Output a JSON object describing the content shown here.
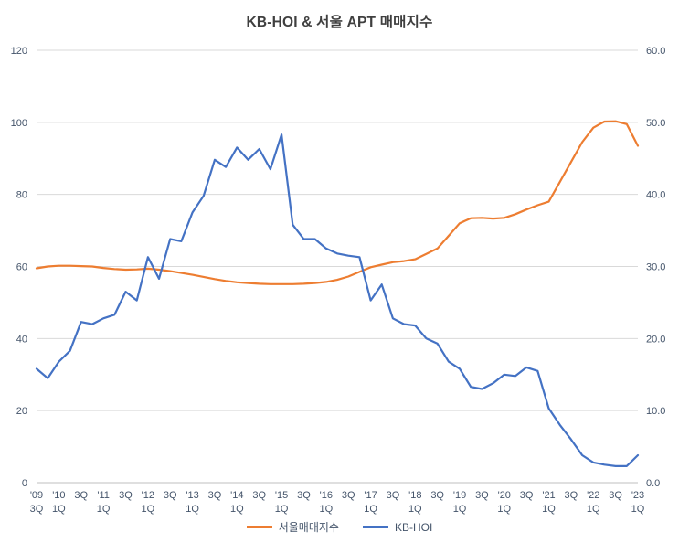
{
  "title": "KB-HOI & 서울 APT 매매지수",
  "legend": {
    "items": [
      "서울매매지수",
      "KB-HOI"
    ]
  },
  "chart_data": {
    "type": "line",
    "title": "KB-HOI & 서울 APT 매매지수",
    "legend_position": "bottom",
    "grid": "horizontal",
    "style": {
      "grid_line": "#d9d9d9",
      "axis_line": "#bfbfbf",
      "axis_text": "#44546a",
      "title_text": "#3f3f3f",
      "background": "#ffffff"
    },
    "left_axis": {
      "min": 0,
      "max": 120,
      "step": 20,
      "ticks": [
        "0",
        "20",
        "40",
        "60",
        "80",
        "100",
        "120"
      ]
    },
    "right_axis": {
      "min": 0,
      "max": 60,
      "step": 10,
      "ticks": [
        "0.0",
        "10.0",
        "20.0",
        "30.0",
        "40.0",
        "50.0",
        "60.0"
      ]
    },
    "x_tick_labels": [
      {
        "top": "'09",
        "bottom": "3Q"
      },
      {
        "top": "'10",
        "bottom": "1Q"
      },
      {
        "top": "3Q",
        "bottom": ""
      },
      {
        "top": "'11",
        "bottom": "1Q"
      },
      {
        "top": "3Q",
        "bottom": ""
      },
      {
        "top": "'12",
        "bottom": "1Q"
      },
      {
        "top": "3Q",
        "bottom": ""
      },
      {
        "top": "'13",
        "bottom": "1Q"
      },
      {
        "top": "3Q",
        "bottom": ""
      },
      {
        "top": "'14",
        "bottom": "1Q"
      },
      {
        "top": "3Q",
        "bottom": ""
      },
      {
        "top": "'15",
        "bottom": "1Q"
      },
      {
        "top": "3Q",
        "bottom": ""
      },
      {
        "top": "'16",
        "bottom": "1Q"
      },
      {
        "top": "3Q",
        "bottom": ""
      },
      {
        "top": "'17",
        "bottom": "1Q"
      },
      {
        "top": "3Q",
        "bottom": ""
      },
      {
        "top": "'18",
        "bottom": "1Q"
      },
      {
        "top": "3Q",
        "bottom": ""
      },
      {
        "top": "'19",
        "bottom": "1Q"
      },
      {
        "top": "3Q",
        "bottom": ""
      },
      {
        "top": "'20",
        "bottom": "1Q"
      },
      {
        "top": "3Q",
        "bottom": ""
      },
      {
        "top": "'21",
        "bottom": "1Q"
      },
      {
        "top": "3Q",
        "bottom": ""
      },
      {
        "top": "'22",
        "bottom": "1Q"
      },
      {
        "top": "3Q",
        "bottom": ""
      },
      {
        "top": "'23",
        "bottom": "1Q"
      }
    ],
    "quarters": [
      "'09 3Q",
      "'09 4Q",
      "'10 1Q",
      "'10 2Q",
      "'10 3Q",
      "'10 4Q",
      "'11 1Q",
      "'11 2Q",
      "'11 3Q",
      "'11 4Q",
      "'12 1Q",
      "'12 2Q",
      "'12 3Q",
      "'12 4Q",
      "'13 1Q",
      "'13 2Q",
      "'13 3Q",
      "'13 4Q",
      "'14 1Q",
      "'14 2Q",
      "'14 3Q",
      "'14 4Q",
      "'15 1Q",
      "'15 2Q",
      "'15 3Q",
      "'15 4Q",
      "'16 1Q",
      "'16 2Q",
      "'16 3Q",
      "'16 4Q",
      "'17 1Q",
      "'17 2Q",
      "'17 3Q",
      "'17 4Q",
      "'18 1Q",
      "'18 2Q",
      "'18 3Q",
      "'18 4Q",
      "'19 1Q",
      "'19 2Q",
      "'19 3Q",
      "'19 4Q",
      "'20 1Q",
      "'20 2Q",
      "'20 3Q",
      "'20 4Q",
      "'21 1Q",
      "'21 2Q",
      "'21 3Q",
      "'21 4Q",
      "'22 1Q",
      "'22 2Q",
      "'22 3Q",
      "'22 4Q",
      "'23 1Q"
    ],
    "series": [
      {
        "name": "서울매매지수",
        "axis": "left",
        "color": "#ed7d31",
        "values": [
          59.5,
          60.0,
          60.2,
          60.2,
          60.1,
          60.0,
          59.6,
          59.3,
          59.1,
          59.2,
          59.4,
          59.1,
          58.7,
          58.2,
          57.7,
          57.1,
          56.5,
          56.0,
          55.6,
          55.4,
          55.2,
          55.1,
          55.1,
          55.1,
          55.2,
          55.4,
          55.7,
          56.3,
          57.2,
          58.5,
          59.8,
          60.5,
          61.2,
          61.5,
          62.0,
          63.5,
          65.0,
          68.5,
          72.0,
          73.4,
          73.5,
          73.3,
          73.5,
          74.5,
          75.8,
          77.0,
          78.0,
          83.5,
          89.0,
          94.5,
          98.5,
          100.2,
          100.3,
          99.5,
          93.5
        ]
      },
      {
        "name": "KB-HOI",
        "axis": "right",
        "color": "#4472c4",
        "values": [
          15.8,
          14.5,
          16.8,
          18.3,
          22.3,
          22.0,
          22.8,
          23.3,
          26.5,
          25.3,
          31.3,
          28.3,
          33.8,
          33.5,
          37.5,
          39.8,
          44.8,
          43.8,
          46.5,
          44.8,
          46.3,
          43.5,
          48.3,
          35.8,
          33.8,
          33.8,
          32.5,
          31.8,
          31.5,
          31.3,
          25.3,
          27.5,
          22.8,
          22.0,
          21.8,
          20.0,
          19.3,
          16.8,
          15.8,
          13.3,
          13.0,
          13.8,
          15.0,
          14.8,
          16.0,
          15.5,
          10.3,
          8.0,
          6.0,
          3.8,
          2.8,
          2.5,
          2.3,
          2.3,
          3.8
        ]
      }
    ]
  }
}
